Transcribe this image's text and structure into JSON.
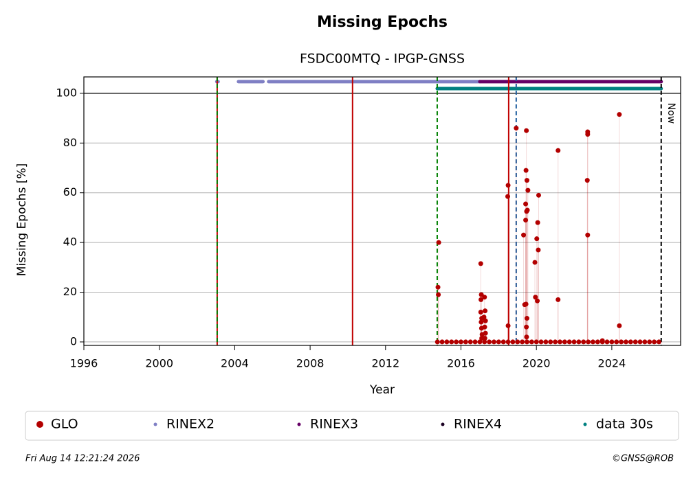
{
  "chart_data": {
    "type": "scatter",
    "title": "Missing Epochs",
    "subtitle": "FSDC00MTQ - IPGP-GNSS",
    "xlabel": "Year",
    "ylabel": "Missing Epochs [%]",
    "xlim": [
      1996,
      2027.65
    ],
    "ylim": [
      -1.4,
      106.6
    ],
    "xticks": [
      1996,
      2000,
      2004,
      2008,
      2012,
      2016,
      2020,
      2024
    ],
    "yticks": [
      0,
      20,
      40,
      60,
      80,
      100
    ],
    "grid": true,
    "separator_y": 100,
    "series": [
      {
        "name": "GLO",
        "color": "#b30000",
        "x": [
          2014.78,
          2014.8,
          2014.82,
          2017.05,
          2017.08,
          2017.06,
          2017.05,
          2017.1,
          2017.07,
          2017.09,
          2017.12,
          2017.1,
          2017.25,
          2017.28,
          2017.22,
          2017.3,
          2017.26,
          2017.3,
          2017.27,
          2018.5,
          2018.48,
          2018.5,
          2018.93,
          2019.32,
          2019.38,
          2019.47,
          2019.45,
          2019.5,
          2019.43,
          2019.43,
          2019.52,
          2019.48,
          2019.55,
          2019.5,
          2019.47,
          2019.48,
          2019.45,
          2019.92,
          2019.95,
          2020.05,
          2020.02,
          2020.07,
          2020.1,
          2020.12,
          2021.15,
          2021.15,
          2022.72,
          2022.72,
          2022.7,
          2022.72,
          2023.5,
          2024.4,
          2024.4,
          2014.75,
          2015.0,
          2015.25,
          2015.5,
          2015.75,
          2016.0,
          2016.25,
          2016.5,
          2016.75,
          2017.0,
          2017.25,
          2017.5,
          2017.75,
          2018.0,
          2018.25,
          2018.5,
          2018.75,
          2019.0,
          2019.25,
          2019.5,
          2019.75,
          2020.0,
          2020.25,
          2020.5,
          2020.75,
          2021.0,
          2021.25,
          2021.5,
          2021.75,
          2022.0,
          2022.25,
          2022.5,
          2022.75,
          2023.0,
          2023.25,
          2023.5,
          2023.75,
          2024.0,
          2024.25,
          2024.5,
          2024.75,
          2025.0,
          2025.25,
          2025.5,
          2025.75,
          2026.0,
          2026.25,
          2026.5
        ],
        "values": [
          22,
          19,
          40,
          31.5,
          19,
          17,
          12,
          9.5,
          8,
          5.5,
          3,
          1.5,
          18,
          12.5,
          10,
          8.5,
          6,
          3.5,
          1.5,
          63,
          58.5,
          6.5,
          86,
          43,
          15,
          85,
          69,
          65,
          55.5,
          49,
          53,
          52.5,
          61,
          9.5,
          6,
          2,
          15.2,
          32,
          18,
          16.5,
          41.5,
          48,
          37,
          59,
          77,
          17,
          84.5,
          83.5,
          65,
          43,
          0.5,
          91.5,
          6.5,
          0,
          0,
          0,
          0,
          0,
          0,
          0,
          0,
          0,
          0,
          0,
          0,
          0,
          0,
          0,
          0,
          0,
          0,
          0,
          0,
          0,
          0,
          0,
          0,
          0,
          0,
          0,
          0,
          0,
          0,
          0,
          0,
          0,
          0,
          0,
          0,
          0,
          0,
          0,
          0,
          0,
          0,
          0,
          0,
          0,
          0,
          0,
          0
        ]
      }
    ],
    "availability": [
      {
        "name": "RINEX2",
        "color": "#7f7fc4",
        "level": 104.7,
        "segments": [
          [
            2003.05,
            2003.12
          ],
          [
            2004.2,
            2005.5
          ],
          [
            2005.8,
            2017.0
          ]
        ]
      },
      {
        "name": "RINEX3",
        "color": "#660066",
        "level": 104.7,
        "segments": [
          [
            2017.0,
            2026.62
          ]
        ]
      },
      {
        "name": "RINEX4",
        "color": "#1a0022",
        "level": 104.7,
        "segments": []
      },
      {
        "name": "data 30s",
        "color": "#008080",
        "level": 101.9,
        "segments": [
          [
            2014.74,
            2026.62
          ]
        ]
      }
    ],
    "vlines": [
      {
        "x": 2003.07,
        "color": "#c00000",
        "dash": false
      },
      {
        "x": 2003.07,
        "color": "#008000",
        "dash": true
      },
      {
        "x": 2010.25,
        "color": "#c00000",
        "dash": false
      },
      {
        "x": 2014.74,
        "color": "#008000",
        "dash": true
      },
      {
        "x": 2018.53,
        "color": "#c00000",
        "dash": false
      },
      {
        "x": 2018.93,
        "color": "#1f5f9f",
        "dash": true
      },
      {
        "x": 2026.62,
        "color": "#000000",
        "dash": true
      }
    ],
    "now_label": "Now",
    "timestamp": "Fri Aug 14 12:21:24 2026",
    "credit": "©GNSS@ROB"
  }
}
